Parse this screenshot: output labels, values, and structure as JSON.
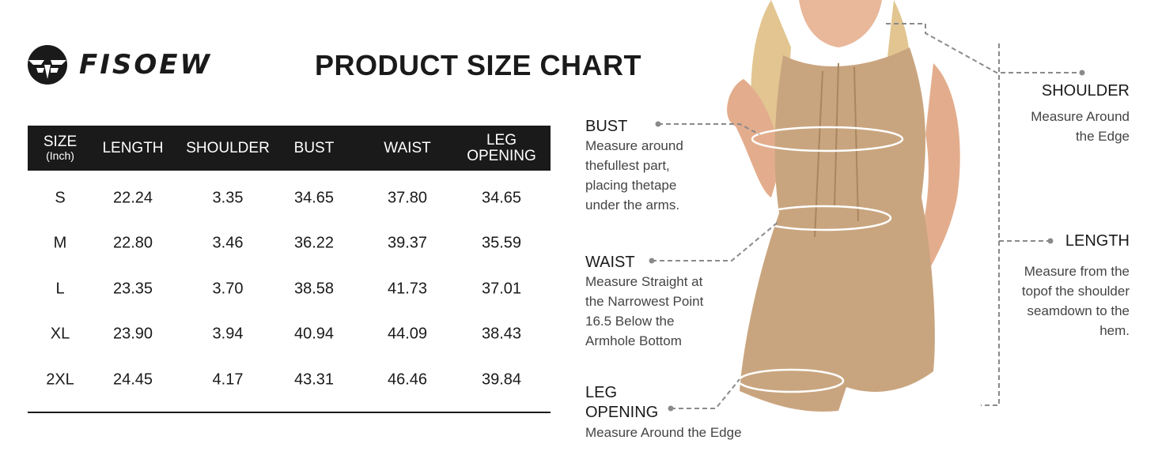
{
  "brand": {
    "name": "FISOEW"
  },
  "title": "PRODUCT SIZE CHART",
  "table": {
    "headers": [
      {
        "label": "SIZE",
        "sub": "(Inch)"
      },
      {
        "label": "LENGTH"
      },
      {
        "label": "SHOULDER"
      },
      {
        "label": "BUST"
      },
      {
        "label": "WAIST"
      },
      {
        "label": "LEG OPENING"
      }
    ],
    "rows": [
      [
        "S",
        "22.24",
        "3.35",
        "34.65",
        "37.80",
        "34.65"
      ],
      [
        "M",
        "22.80",
        "3.46",
        "36.22",
        "39.37",
        "35.59"
      ],
      [
        "L",
        "23.35",
        "3.70",
        "38.58",
        "41.73",
        "37.01"
      ],
      [
        "XL",
        "23.90",
        "3.94",
        "40.94",
        "44.09",
        "38.43"
      ],
      [
        "2XL",
        "24.45",
        "4.17",
        "43.31",
        "46.46",
        "39.84"
      ]
    ]
  },
  "measurements": {
    "bust": {
      "label": "BUST",
      "desc": [
        "Measure around",
        "thefullest part,",
        "placing thetape",
        "under the arms."
      ]
    },
    "waist": {
      "label": "WAIST",
      "desc": [
        "Measure Straight at",
        "the Narrowest Point",
        "16.5 Below the",
        "Armhole Bottom"
      ]
    },
    "leg": {
      "label": [
        "LEG",
        "OPENING"
      ],
      "desc": [
        "Measure Around the Edge"
      ]
    },
    "shoulder": {
      "label": "SHOULDER",
      "desc": [
        "Measure Around",
        "the Edge"
      ]
    },
    "length": {
      "label": "LENGTH",
      "desc": [
        "Measure from the",
        "topof the shoulder",
        "seamdown to the",
        "hem."
      ]
    }
  },
  "colors": {
    "header_bg": "#1a1a1a",
    "dress": "#c9a57f",
    "leader": "#8a8a8a"
  }
}
